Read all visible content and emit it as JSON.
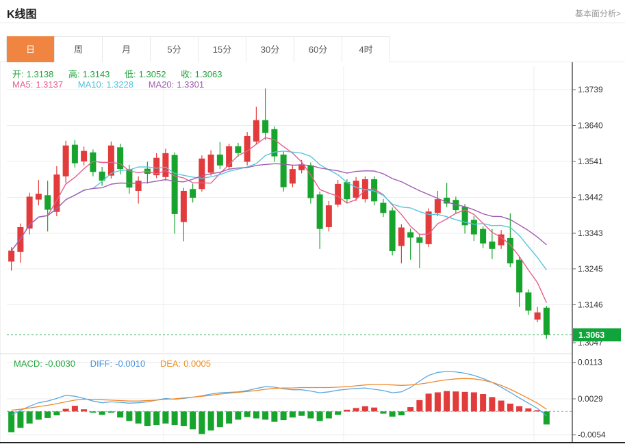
{
  "header": {
    "title": "K线图",
    "link_label": "基本面分析>"
  },
  "tabs": {
    "items": [
      "日",
      "周",
      "月",
      "5分",
      "15分",
      "30分",
      "60分",
      "4时"
    ],
    "active_index": 0
  },
  "legend": {
    "open_label": "开:",
    "open_value": "1.3138",
    "high_label": "高:",
    "high_value": "1.3143",
    "low_label": "低:",
    "low_value": "1.3052",
    "close_label": "收:",
    "close_value": "1.3063",
    "ma5_label": "MA5:",
    "ma5_value": "1.3137",
    "ma10_label": "MA10:",
    "ma10_value": "1.3228",
    "ma20_label": "MA20:",
    "ma20_value": "1.3301"
  },
  "macd_legend": {
    "macd_label": "MACD:",
    "macd_value": "-0.0030",
    "diff_label": "DIFF:",
    "diff_value": "-0.0010",
    "dea_label": "DEA:",
    "dea_value": "0.0005"
  },
  "colors": {
    "up_red": "#e23b3c",
    "down_green": "#17a42c",
    "ma5": "#e85d8a",
    "ma10": "#56c6dd",
    "ma20": "#a25cb3",
    "diff_blue": "#5aa7e0",
    "dea_orange": "#f0872a",
    "tag_green": "#10a43a",
    "price_dash": "#22aa44",
    "zero_dash": "#86ced6",
    "tab_active": "#ef8540",
    "grid": "#ececec",
    "axis_line": "#4a4a4a",
    "axis_text": "#333333"
  },
  "chart_data": {
    "type": "candlestick",
    "title": "K线图",
    "legend_position": "top-left",
    "grid": true,
    "main": {
      "y_axis_side": "right",
      "y_ticks": [
        "1.3739",
        "1.3640",
        "1.3541",
        "1.3442",
        "1.3343",
        "1.3245",
        "1.3146"
      ],
      "hidden_y_tick": "1.3047",
      "current_price": 1.3063,
      "current_price_label": "1.3063",
      "ohlc_last": {
        "open": 1.3138,
        "high": 1.3143,
        "low": 1.3052,
        "close": 1.3063
      },
      "ma_values": {
        "ma5": 1.3137,
        "ma10": 1.3228,
        "ma20": 1.3301
      },
      "ma_windows": [
        5,
        10,
        20
      ],
      "up_color_convention": "red-up-green-down",
      "candles_ohlc": [
        [
          1.3265,
          1.3305,
          1.324,
          1.3295
        ],
        [
          1.3292,
          1.337,
          1.3262,
          1.336
        ],
        [
          1.3356,
          1.3455,
          1.334,
          1.3444
        ],
        [
          1.3436,
          1.349,
          1.342,
          1.3452
        ],
        [
          1.3448,
          1.3488,
          1.3348,
          1.3408
        ],
        [
          1.3402,
          1.3528,
          1.339,
          1.3505
        ],
        [
          1.35,
          1.3598,
          1.3482,
          1.3585
        ],
        [
          1.3587,
          1.36,
          1.3524,
          1.3536
        ],
        [
          1.3541,
          1.3582,
          1.353,
          1.357
        ],
        [
          1.3566,
          1.3574,
          1.35,
          1.3512
        ],
        [
          1.3513,
          1.3526,
          1.3474,
          1.3488
        ],
        [
          1.3502,
          1.3596,
          1.3494,
          1.3585
        ],
        [
          1.358,
          1.359,
          1.3506,
          1.352
        ],
        [
          1.352,
          1.3532,
          1.3452,
          1.3469
        ],
        [
          1.346,
          1.35,
          1.3425,
          1.3488
        ],
        [
          1.3521,
          1.354,
          1.348,
          1.3507
        ],
        [
          1.3503,
          1.3564,
          1.3495,
          1.3551
        ],
        [
          1.3498,
          1.3576,
          1.3488,
          1.3564
        ],
        [
          1.3559,
          1.3566,
          1.3342,
          1.3396
        ],
        [
          1.3374,
          1.3468,
          1.3321,
          1.346
        ],
        [
          1.3465,
          1.348,
          1.3428,
          1.3441
        ],
        [
          1.3465,
          1.3558,
          1.3458,
          1.3549
        ],
        [
          1.351,
          1.3572,
          1.3502,
          1.356
        ],
        [
          1.356,
          1.3595,
          1.352,
          1.353
        ],
        [
          1.3526,
          1.359,
          1.3518,
          1.3583
        ],
        [
          1.3583,
          1.3592,
          1.3554,
          1.3564
        ],
        [
          1.354,
          1.3622,
          1.353,
          1.3611
        ],
        [
          1.3596,
          1.3692,
          1.3588,
          1.3655
        ],
        [
          1.3655,
          1.3742,
          1.36,
          1.362
        ],
        [
          1.363,
          1.3638,
          1.354,
          1.3555
        ],
        [
          1.356,
          1.3568,
          1.3458,
          1.347
        ],
        [
          1.348,
          1.3532,
          1.347,
          1.352
        ],
        [
          1.3517,
          1.3545,
          1.3508,
          1.3533
        ],
        [
          1.353,
          1.3538,
          1.3425,
          1.344
        ],
        [
          1.345,
          1.3458,
          1.33,
          1.3355
        ],
        [
          1.336,
          1.3432,
          1.3348,
          1.342
        ],
        [
          1.3422,
          1.349,
          1.3415,
          1.3479
        ],
        [
          1.3484,
          1.3492,
          1.3425,
          1.3437
        ],
        [
          1.3441,
          1.3498,
          1.3432,
          1.3488
        ],
        [
          1.3437,
          1.35,
          1.3428,
          1.3492
        ],
        [
          1.3492,
          1.35,
          1.342,
          1.3431
        ],
        [
          1.3427,
          1.3438,
          1.3388,
          1.3399
        ],
        [
          1.3406,
          1.3414,
          1.3282,
          1.3294
        ],
        [
          1.3308,
          1.3368,
          1.326,
          1.3359
        ],
        [
          1.3346,
          1.3356,
          1.327,
          1.3331
        ],
        [
          1.3332,
          1.3342,
          1.3247,
          1.3317
        ],
        [
          1.3313,
          1.3412,
          1.3305,
          1.3403
        ],
        [
          1.3399,
          1.346,
          1.339,
          1.3437
        ],
        [
          1.3441,
          1.3482,
          1.3415,
          1.3425
        ],
        [
          1.3435,
          1.3444,
          1.3396,
          1.3407
        ],
        [
          1.3416,
          1.3424,
          1.3342,
          1.3365
        ],
        [
          1.338,
          1.339,
          1.3322,
          1.334
        ],
        [
          1.3355,
          1.3362,
          1.3302,
          1.3315
        ],
        [
          1.332,
          1.3355,
          1.3272,
          1.33
        ],
        [
          1.331,
          1.3352,
          1.33,
          1.334
        ],
        [
          1.333,
          1.3398,
          1.325,
          1.326
        ],
        [
          1.327,
          1.3278,
          1.314,
          1.318
        ],
        [
          1.318,
          1.3188,
          1.3118,
          1.313
        ],
        [
          1.3105,
          1.314,
          1.3098,
          1.3125
        ],
        [
          1.3138,
          1.3143,
          1.3052,
          1.3063
        ]
      ]
    },
    "macd": {
      "y_ticks": [
        "0.0113",
        "0.0029",
        "-0.0054"
      ],
      "macd_last": -0.003,
      "diff_last": -0.001,
      "dea_last": 0.0005,
      "histogram": [
        -0.0048,
        -0.0038,
        -0.0028,
        -0.0019,
        -0.0015,
        -0.0009,
        0.0006,
        0.0013,
        0.0005,
        -0.0003,
        -0.0008,
        -0.0003,
        -0.0014,
        -0.0022,
        -0.0028,
        -0.0034,
        -0.0031,
        -0.0028,
        -0.0031,
        -0.0034,
        -0.0041,
        -0.0052,
        -0.0044,
        -0.0036,
        -0.0028,
        -0.0019,
        -0.0013,
        -0.0016,
        -0.0019,
        -0.0024,
        -0.002,
        -0.0014,
        -0.001,
        -0.0016,
        -0.0022,
        -0.0016,
        -0.0008,
        0.0004,
        0.0008,
        0.0012,
        0.0009,
        -0.0005,
        -0.0012,
        -0.0009,
        0.001,
        0.0026,
        0.0041,
        0.0044,
        0.0047,
        0.0046,
        0.0045,
        0.0044,
        0.004,
        0.0033,
        0.0025,
        0.0018,
        0.0012,
        0.0007,
        0.0003,
        -0.003
      ],
      "diff": [
        -0.0008,
        0.0002,
        0.0012,
        0.002,
        0.0024,
        0.003,
        0.0037,
        0.0035,
        0.003,
        0.0024,
        0.002,
        0.0022,
        0.0021,
        0.0019,
        0.002,
        0.0022,
        0.0026,
        0.003,
        0.0028,
        0.003,
        0.0033,
        0.0036,
        0.004,
        0.0043,
        0.0044,
        0.0045,
        0.0048,
        0.0053,
        0.0057,
        0.0056,
        0.0052,
        0.005,
        0.005,
        0.0047,
        0.0043,
        0.0045,
        0.0049,
        0.0051,
        0.0053,
        0.0054,
        0.0051,
        0.0048,
        0.0043,
        0.0045,
        0.0055,
        0.007,
        0.0083,
        0.009,
        0.0092,
        0.0091,
        0.0088,
        0.0083,
        0.0076,
        0.0067,
        0.0056,
        0.0044,
        0.0031,
        0.0019,
        0.0007,
        -0.001
      ],
      "dea": [
        0.0003,
        0.0005,
        0.0008,
        0.0011,
        0.0014,
        0.0018,
        0.0022,
        0.0026,
        0.0028,
        0.0028,
        0.0027,
        0.0026,
        0.0025,
        0.0024,
        0.0024,
        0.0025,
        0.0026,
        0.0028,
        0.0029,
        0.0031,
        0.0033,
        0.0035,
        0.0037,
        0.004,
        0.0042,
        0.0044,
        0.0046,
        0.0048,
        0.0051,
        0.0053,
        0.0054,
        0.0054,
        0.0055,
        0.0055,
        0.0055,
        0.0055,
        0.0056,
        0.0057,
        0.0059,
        0.0061,
        0.0062,
        0.0062,
        0.0061,
        0.006,
        0.0061,
        0.0063,
        0.0066,
        0.007,
        0.0073,
        0.0075,
        0.0076,
        0.0075,
        0.0072,
        0.0067,
        0.006,
        0.0051,
        0.0041,
        0.003,
        0.0019,
        0.0005
      ]
    }
  }
}
